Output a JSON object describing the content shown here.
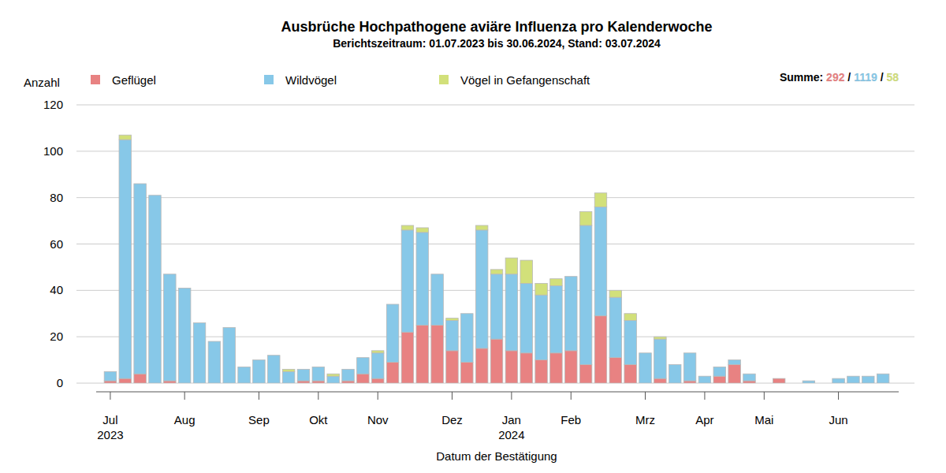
{
  "chart_data": {
    "type": "bar",
    "stacked": true,
    "title": "Ausbrüche Hochpathogene aviäre Influenza pro Kalenderwoche",
    "subtitle": "Berichtszeitraum: 01.07.2023 bis 30.06.2024, Stand: 03.07.2024",
    "y_label": "Anzahl",
    "x_label": "Datum der Bestätigung",
    "totals_label": "Summe:",
    "totals_separator": "/",
    "grid": true,
    "legend": "top",
    "ylim": [
      0,
      120
    ],
    "yticks": [
      0,
      20,
      40,
      60,
      80,
      100,
      120
    ],
    "categories": [
      "Jul\n2023",
      null,
      null,
      null,
      null,
      "Aug",
      null,
      null,
      null,
      null,
      "Sep",
      null,
      null,
      null,
      "Okt",
      null,
      null,
      null,
      "Nov",
      null,
      null,
      null,
      null,
      "Dez",
      null,
      null,
      null,
      "Jan\n2024",
      null,
      null,
      null,
      "Feb",
      null,
      null,
      null,
      null,
      "Mrz",
      null,
      null,
      null,
      "Apr",
      null,
      null,
      null,
      "Mai",
      null,
      null,
      null,
      null,
      "Jun",
      null,
      null,
      null
    ],
    "series": [
      {
        "name": "Geflügel",
        "color": "#e88282",
        "total": 292,
        "values": [
          1,
          2,
          4,
          0,
          1,
          0,
          0,
          0,
          0,
          0,
          0,
          0,
          0,
          1,
          1,
          0,
          1,
          4,
          2,
          9,
          22,
          25,
          25,
          14,
          9,
          15,
          19,
          14,
          13,
          10,
          13,
          14,
          8,
          29,
          11,
          8,
          0,
          2,
          0,
          1,
          0,
          3,
          8,
          1,
          0,
          2,
          0,
          0,
          0,
          0,
          0,
          0,
          0
        ]
      },
      {
        "name": "Wildvögel",
        "color": "#87c8e8",
        "total": 1119,
        "values": [
          4,
          103,
          82,
          81,
          46,
          41,
          26,
          18,
          24,
          7,
          10,
          12,
          5,
          5,
          6,
          3,
          5,
          7,
          11,
          25,
          44,
          40,
          22,
          13,
          21,
          51,
          28,
          33,
          30,
          28,
          29,
          32,
          60,
          47,
          26,
          19,
          13,
          17,
          8,
          12,
          3,
          4,
          2,
          3,
          0,
          0,
          0,
          1,
          0,
          2,
          3,
          3,
          4
        ]
      },
      {
        "name": "Vögel in Gefangenschaft",
        "color": "#d2e07a",
        "total": 58,
        "values": [
          0,
          2,
          0,
          0,
          0,
          0,
          0,
          0,
          0,
          0,
          0,
          0,
          1,
          0,
          0,
          1,
          0,
          0,
          1,
          0,
          2,
          2,
          0,
          1,
          0,
          2,
          2,
          7,
          10,
          5,
          3,
          0,
          6,
          6,
          3,
          3,
          0,
          1,
          0,
          0,
          0,
          0,
          0,
          0,
          0,
          0,
          0,
          0,
          0,
          0,
          0,
          0,
          0
        ]
      }
    ]
  }
}
